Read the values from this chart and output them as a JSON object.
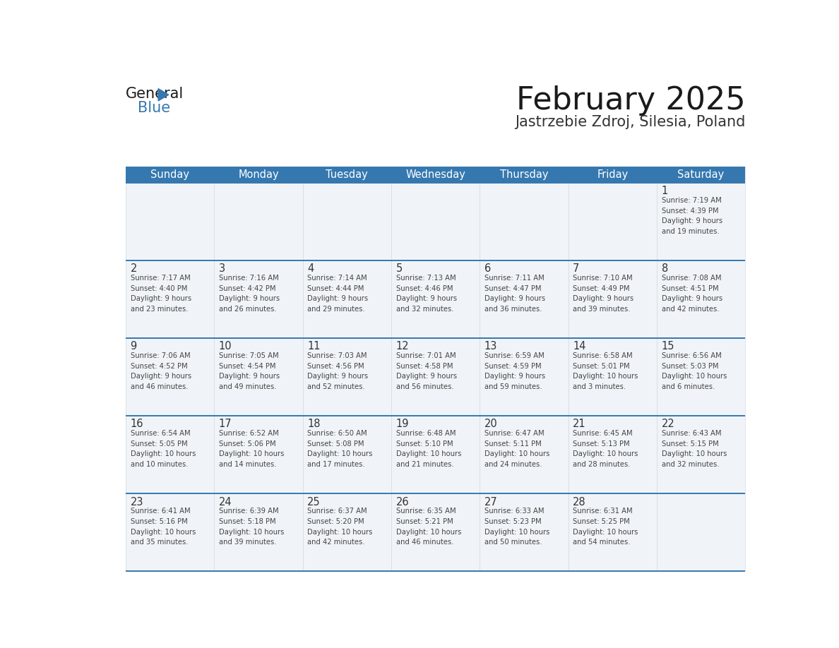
{
  "title": "February 2025",
  "subtitle": "Jastrzebie Zdroj, Silesia, Poland",
  "header_color": "#3578b0",
  "header_text_color": "#ffffff",
  "cell_bg": "#f0f4f8",
  "text_color": "#333333",
  "day_number_color": "#333333",
  "border_color": "#3578b0",
  "days_of_week": [
    "Sunday",
    "Monday",
    "Tuesday",
    "Wednesday",
    "Thursday",
    "Friday",
    "Saturday"
  ],
  "weeks": [
    [
      {
        "day": null,
        "info": null
      },
      {
        "day": null,
        "info": null
      },
      {
        "day": null,
        "info": null
      },
      {
        "day": null,
        "info": null
      },
      {
        "day": null,
        "info": null
      },
      {
        "day": null,
        "info": null
      },
      {
        "day": 1,
        "info": "Sunrise: 7:19 AM\nSunset: 4:39 PM\nDaylight: 9 hours\nand 19 minutes."
      }
    ],
    [
      {
        "day": 2,
        "info": "Sunrise: 7:17 AM\nSunset: 4:40 PM\nDaylight: 9 hours\nand 23 minutes."
      },
      {
        "day": 3,
        "info": "Sunrise: 7:16 AM\nSunset: 4:42 PM\nDaylight: 9 hours\nand 26 minutes."
      },
      {
        "day": 4,
        "info": "Sunrise: 7:14 AM\nSunset: 4:44 PM\nDaylight: 9 hours\nand 29 minutes."
      },
      {
        "day": 5,
        "info": "Sunrise: 7:13 AM\nSunset: 4:46 PM\nDaylight: 9 hours\nand 32 minutes."
      },
      {
        "day": 6,
        "info": "Sunrise: 7:11 AM\nSunset: 4:47 PM\nDaylight: 9 hours\nand 36 minutes."
      },
      {
        "day": 7,
        "info": "Sunrise: 7:10 AM\nSunset: 4:49 PM\nDaylight: 9 hours\nand 39 minutes."
      },
      {
        "day": 8,
        "info": "Sunrise: 7:08 AM\nSunset: 4:51 PM\nDaylight: 9 hours\nand 42 minutes."
      }
    ],
    [
      {
        "day": 9,
        "info": "Sunrise: 7:06 AM\nSunset: 4:52 PM\nDaylight: 9 hours\nand 46 minutes."
      },
      {
        "day": 10,
        "info": "Sunrise: 7:05 AM\nSunset: 4:54 PM\nDaylight: 9 hours\nand 49 minutes."
      },
      {
        "day": 11,
        "info": "Sunrise: 7:03 AM\nSunset: 4:56 PM\nDaylight: 9 hours\nand 52 minutes."
      },
      {
        "day": 12,
        "info": "Sunrise: 7:01 AM\nSunset: 4:58 PM\nDaylight: 9 hours\nand 56 minutes."
      },
      {
        "day": 13,
        "info": "Sunrise: 6:59 AM\nSunset: 4:59 PM\nDaylight: 9 hours\nand 59 minutes."
      },
      {
        "day": 14,
        "info": "Sunrise: 6:58 AM\nSunset: 5:01 PM\nDaylight: 10 hours\nand 3 minutes."
      },
      {
        "day": 15,
        "info": "Sunrise: 6:56 AM\nSunset: 5:03 PM\nDaylight: 10 hours\nand 6 minutes."
      }
    ],
    [
      {
        "day": 16,
        "info": "Sunrise: 6:54 AM\nSunset: 5:05 PM\nDaylight: 10 hours\nand 10 minutes."
      },
      {
        "day": 17,
        "info": "Sunrise: 6:52 AM\nSunset: 5:06 PM\nDaylight: 10 hours\nand 14 minutes."
      },
      {
        "day": 18,
        "info": "Sunrise: 6:50 AM\nSunset: 5:08 PM\nDaylight: 10 hours\nand 17 minutes."
      },
      {
        "day": 19,
        "info": "Sunrise: 6:48 AM\nSunset: 5:10 PM\nDaylight: 10 hours\nand 21 minutes."
      },
      {
        "day": 20,
        "info": "Sunrise: 6:47 AM\nSunset: 5:11 PM\nDaylight: 10 hours\nand 24 minutes."
      },
      {
        "day": 21,
        "info": "Sunrise: 6:45 AM\nSunset: 5:13 PM\nDaylight: 10 hours\nand 28 minutes."
      },
      {
        "day": 22,
        "info": "Sunrise: 6:43 AM\nSunset: 5:15 PM\nDaylight: 10 hours\nand 32 minutes."
      }
    ],
    [
      {
        "day": 23,
        "info": "Sunrise: 6:41 AM\nSunset: 5:16 PM\nDaylight: 10 hours\nand 35 minutes."
      },
      {
        "day": 24,
        "info": "Sunrise: 6:39 AM\nSunset: 5:18 PM\nDaylight: 10 hours\nand 39 minutes."
      },
      {
        "day": 25,
        "info": "Sunrise: 6:37 AM\nSunset: 5:20 PM\nDaylight: 10 hours\nand 42 minutes."
      },
      {
        "day": 26,
        "info": "Sunrise: 6:35 AM\nSunset: 5:21 PM\nDaylight: 10 hours\nand 46 minutes."
      },
      {
        "day": 27,
        "info": "Sunrise: 6:33 AM\nSunset: 5:23 PM\nDaylight: 10 hours\nand 50 minutes."
      },
      {
        "day": 28,
        "info": "Sunrise: 6:31 AM\nSunset: 5:25 PM\nDaylight: 10 hours\nand 54 minutes."
      },
      {
        "day": null,
        "info": null
      }
    ]
  ]
}
